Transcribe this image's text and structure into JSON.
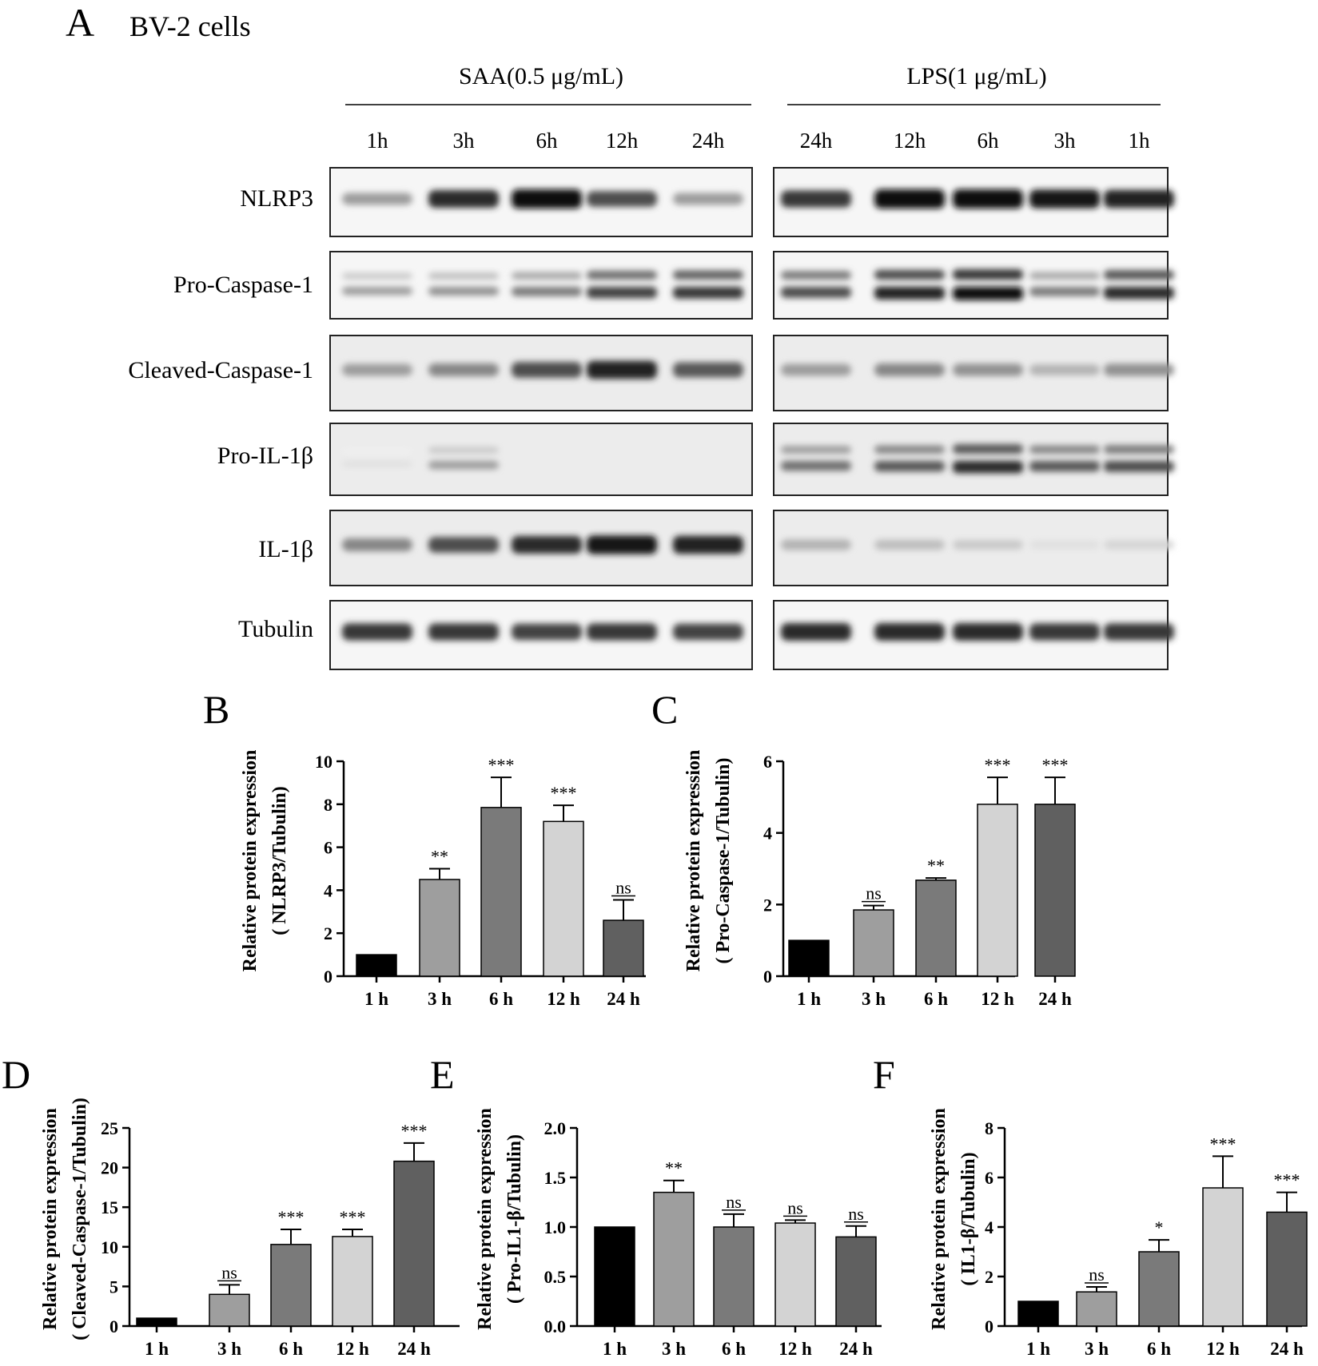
{
  "panel_a": {
    "letter": "A",
    "title": "BV-2 cells",
    "groups": [
      {
        "label": "SAA(0.5 μg/mL)",
        "times": [
          "1h",
          "3h",
          "6h",
          "12h",
          "24h"
        ]
      },
      {
        "label": "LPS(1 μg/mL)",
        "times": [
          "24h",
          "12h",
          "6h",
          "3h",
          "1h"
        ]
      }
    ],
    "rows": [
      {
        "label": "NLRP3",
        "bands": [
          [
            0.35,
            0.85,
            1.0,
            0.7,
            0.35
          ],
          [
            0.8,
            1.0,
            1.0,
            0.95,
            0.9
          ]
        ],
        "double": false
      },
      {
        "label": "Pro-Caspase-1",
        "bands": [
          [
            0.35,
            0.4,
            0.5,
            0.75,
            0.8
          ],
          [
            0.7,
            0.9,
            1.0,
            0.5,
            0.85
          ]
        ],
        "double": true
      },
      {
        "label": "Cleaved-Caspase-1",
        "bands": [
          [
            0.35,
            0.45,
            0.7,
            0.9,
            0.65
          ],
          [
            0.35,
            0.45,
            0.4,
            0.25,
            0.4
          ]
        ],
        "double": false
      },
      {
        "label": "Pro-IL-1β",
        "bands": [
          [
            0.05,
            0.35,
            0.0,
            0.0,
            0.0
          ],
          [
            0.55,
            0.65,
            0.85,
            0.65,
            0.7
          ]
        ],
        "double": true
      },
      {
        "label": "IL-1β",
        "bands": [
          [
            0.45,
            0.7,
            0.85,
            0.95,
            0.9
          ],
          [
            0.25,
            0.2,
            0.15,
            0.05,
            0.1
          ]
        ],
        "double": false
      },
      {
        "label": "Tubulin",
        "bands": [
          [
            0.8,
            0.8,
            0.75,
            0.8,
            0.75
          ],
          [
            0.85,
            0.85,
            0.85,
            0.8,
            0.8
          ]
        ],
        "double": false
      }
    ]
  },
  "chart_data": [
    {
      "panel": "B",
      "type": "bar",
      "ylabel_line1": "Relative protein expression",
      "ylabel_line2": "( NLRP3/Tubulin)",
      "categories": [
        "1 h",
        "3 h",
        "6 h",
        "12 h",
        "24 h"
      ],
      "values": [
        1.0,
        4.5,
        7.85,
        7.2,
        2.6
      ],
      "errors": [
        0,
        0.5,
        1.4,
        0.75,
        0.95
      ],
      "significance": [
        "",
        "**",
        "***",
        "***",
        "ns"
      ],
      "ylim": [
        0,
        10
      ],
      "yticks": [
        "0",
        "2",
        "4",
        "6",
        "8",
        "10"
      ],
      "colors": [
        "#000000",
        "#9e9e9e",
        "#7a7a7a",
        "#d3d3d3",
        "#606060"
      ]
    },
    {
      "panel": "C",
      "type": "bar",
      "ylabel_line1": "Relative protein expression",
      "ylabel_line2": "( Pro-Caspase-1/Tubulin)",
      "categories": [
        "1 h",
        "3 h",
        "6 h",
        "12 h",
        "24 h"
      ],
      "values": [
        1.0,
        1.85,
        2.68,
        4.8,
        4.8
      ],
      "errors": [
        0,
        0.12,
        0.06,
        0.75,
        0.75
      ],
      "significance": [
        "",
        "ns",
        "**",
        "***",
        "***"
      ],
      "ylim": [
        0,
        6
      ],
      "yticks": [
        "0",
        "2",
        "4",
        "6"
      ],
      "colors": [
        "#000000",
        "#9e9e9e",
        "#7a7a7a",
        "#d3d3d3",
        "#606060"
      ]
    },
    {
      "panel": "D",
      "type": "bar",
      "ylabel_line1": "Relative protein expression",
      "ylabel_line2": "( Cleaved-Caspase-1/Tubulin)",
      "categories": [
        "1 h",
        "3 h",
        "6 h",
        "12 h",
        "24 h"
      ],
      "values": [
        1.0,
        4.0,
        10.3,
        11.3,
        20.8
      ],
      "errors": [
        0,
        1.2,
        1.9,
        0.9,
        2.3
      ],
      "significance": [
        "",
        "ns",
        "***",
        "***",
        "***"
      ],
      "ylim": [
        0,
        25
      ],
      "yticks": [
        "0",
        "5",
        "10",
        "15",
        "20",
        "25"
      ],
      "colors": [
        "#000000",
        "#9e9e9e",
        "#7a7a7a",
        "#d3d3d3",
        "#606060"
      ]
    },
    {
      "panel": "E",
      "type": "bar",
      "ylabel_line1": "Relative protein expression",
      "ylabel_line2": "( Pro-IL1-β/Tubulin)",
      "categories": [
        "1 h",
        "3 h",
        "6 h",
        "12 h",
        "24 h"
      ],
      "values": [
        1.0,
        1.35,
        1.0,
        1.04,
        0.9
      ],
      "errors": [
        0,
        0.12,
        0.13,
        0.03,
        0.11
      ],
      "significance": [
        "",
        "**",
        "ns",
        "ns",
        "ns"
      ],
      "ylim": [
        0,
        2.0
      ],
      "yticks": [
        "0.0",
        "0.5",
        "1.0",
        "1.5",
        "2.0"
      ],
      "colors": [
        "#000000",
        "#9e9e9e",
        "#7a7a7a",
        "#d3d3d3",
        "#606060"
      ]
    },
    {
      "panel": "F",
      "type": "bar",
      "ylabel_line1": "Relative protein expression",
      "ylabel_line2": "( IL1-β/Tubulin)",
      "categories": [
        "1 h",
        "3 h",
        "6 h",
        "12 h",
        "24 h"
      ],
      "values": [
        1.0,
        1.38,
        3.0,
        5.58,
        4.6
      ],
      "errors": [
        0,
        0.2,
        0.48,
        1.28,
        0.8
      ],
      "significance": [
        "",
        "ns",
        "*",
        "***",
        "***"
      ],
      "ylim": [
        0,
        8
      ],
      "yticks": [
        "0",
        "2",
        "4",
        "6",
        "8"
      ],
      "colors": [
        "#000000",
        "#9e9e9e",
        "#7a7a7a",
        "#d3d3d3",
        "#606060"
      ]
    }
  ]
}
